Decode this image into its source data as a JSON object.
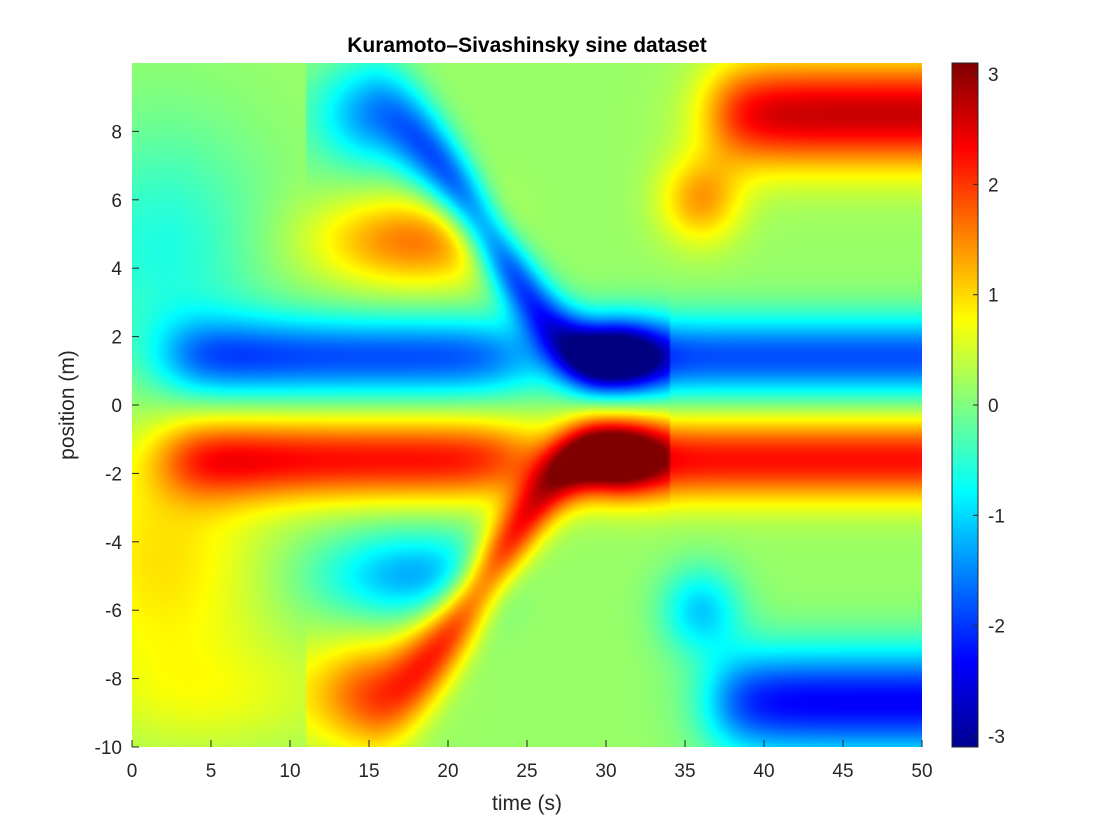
{
  "chart_data": {
    "type": "heatmap",
    "title": "Kuramoto–Sivashinsky sine dataset",
    "xlabel": "time (s)",
    "ylabel": "position (m)",
    "xlim": [
      0,
      50
    ],
    "ylim": [
      -10,
      10
    ],
    "x_ticks": [
      "0",
      "5",
      "10",
      "15",
      "20",
      "25",
      "30",
      "35",
      "40",
      "45",
      "50"
    ],
    "y_ticks": [
      "-10",
      "-8",
      "-6",
      "-4",
      "-2",
      "0",
      "2",
      "4",
      "6",
      "8"
    ],
    "colorbar": {
      "colormap": "jet",
      "range": [
        -3.1,
        3.1
      ],
      "ticks": [
        "-3",
        "-2",
        "-1",
        "0",
        "1",
        "2",
        "3"
      ]
    },
    "grid": false,
    "features": [
      {
        "kind": "band",
        "polarity": "negative",
        "t_range": [
          0,
          50
        ],
        "position": 1.4,
        "peak_value": -2.0
      },
      {
        "kind": "band",
        "polarity": "positive",
        "t_range": [
          0,
          50
        ],
        "position": -1.6,
        "peak_value": 2.1
      },
      {
        "kind": "blob",
        "polarity": "positive",
        "t_range": [
          13,
          24
        ],
        "position": 4.8,
        "peak_value": 1.5
      },
      {
        "kind": "blob",
        "polarity": "negative",
        "t_range": [
          13,
          24
        ],
        "position": -5.0,
        "peak_value": -1.5
      },
      {
        "kind": "diagonal",
        "polarity": "negative",
        "t_range": [
          15,
          30
        ],
        "position_range": [
          8.5,
          1.4
        ],
        "peak_value": -3.0
      },
      {
        "kind": "diagonal",
        "polarity": "positive",
        "t_range": [
          15,
          30
        ],
        "position_range": [
          -8.5,
          -1.6
        ],
        "peak_value": 3.0
      },
      {
        "kind": "blob",
        "polarity": "positive",
        "t_range": [
          36,
          50
        ],
        "position": 8.5,
        "peak_value": 2.6
      },
      {
        "kind": "blob",
        "polarity": "negative",
        "t_range": [
          36,
          50
        ],
        "position": -8.7,
        "peak_value": -2.6
      }
    ]
  }
}
